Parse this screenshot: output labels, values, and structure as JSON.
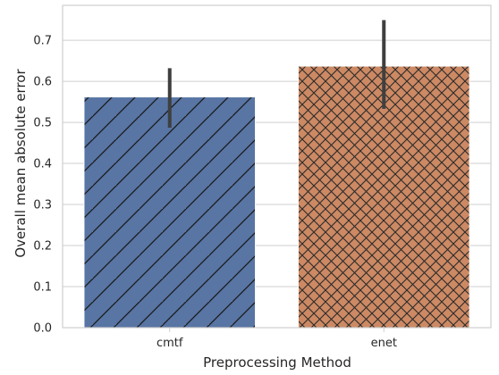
{
  "chart_data": {
    "type": "bar",
    "categories": [
      "cmtf",
      "enet"
    ],
    "values": [
      0.562,
      0.637
    ],
    "error_bars": [
      {
        "low": 0.487,
        "high": 0.632
      },
      {
        "low": 0.533,
        "high": 0.749
      }
    ],
    "bar_colors": [
      "#5875a4",
      "#cc8963"
    ],
    "hatch": [
      "diagonal",
      "crosshatch"
    ],
    "xlabel": "Preprocessing Method",
    "ylabel": "Overall mean absolute error",
    "ylim": [
      0,
      0.785
    ],
    "yticks": [
      "0.0",
      "0.1",
      "0.2",
      "0.3",
      "0.4",
      "0.5",
      "0.6",
      "0.7"
    ],
    "grid": "horizontal",
    "legend": "none"
  }
}
